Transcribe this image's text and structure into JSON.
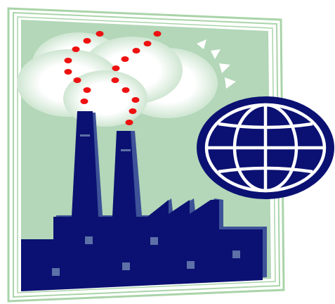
{
  "illustration": {
    "subject": "factory-with-globe-clipart",
    "icons": [
      "factory-icon",
      "smokestack-icon",
      "cloud-icon",
      "sun-icon",
      "globe-icon",
      "picture-frame-icon"
    ],
    "colors": {
      "frame_stroke": "#a9d4a9",
      "sky": "#b3d7b8",
      "cloud": "#ffffff",
      "cloud_halo": "#cfe6d2",
      "smoke_dots": "#ee1111",
      "factory": "#0b1172",
      "factory_shade": "#3d5298",
      "windows": "#5d70a8",
      "globe_fill": "#0b1172",
      "globe_lines": "#ffffff",
      "sun_rays": "#ffffff"
    }
  }
}
